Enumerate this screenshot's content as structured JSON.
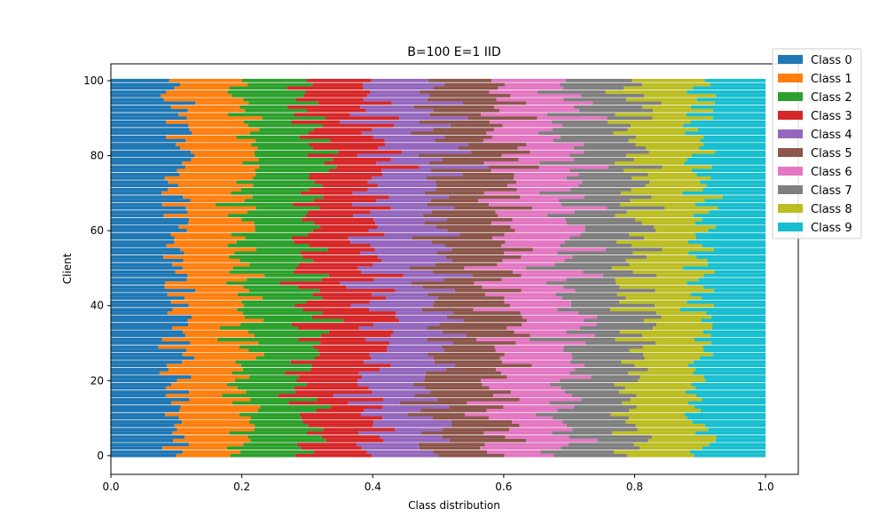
{
  "chart_data": {
    "type": "bar",
    "orientation": "horizontal-stacked",
    "title": "B=100 E=1 IID",
    "xlabel": "Class distribution",
    "ylabel": "Client",
    "xlim": [
      0.0,
      1.05
    ],
    "ylim": [
      -5,
      104.5
    ],
    "xticks": [
      "0.0",
      "0.2",
      "0.4",
      "0.6",
      "0.8",
      "1.0"
    ],
    "yticks": [
      "0",
      "20",
      "40",
      "60",
      "80",
      "100"
    ],
    "grid": false,
    "legend_position": "top-right",
    "num_clients": 101,
    "client_range": [
      0,
      100
    ],
    "mean_share_per_class": 0.1,
    "series": [
      {
        "name": "Class 0",
        "color": "#1f77b4",
        "mean_share": 0.1
      },
      {
        "name": "Class 1",
        "color": "#ff7f0e",
        "mean_share": 0.1
      },
      {
        "name": "Class 2",
        "color": "#2ca02c",
        "mean_share": 0.1
      },
      {
        "name": "Class 3",
        "color": "#d62728",
        "mean_share": 0.1
      },
      {
        "name": "Class 4",
        "color": "#9467bd",
        "mean_share": 0.1
      },
      {
        "name": "Class 5",
        "color": "#8c564b",
        "mean_share": 0.1
      },
      {
        "name": "Class 6",
        "color": "#e377c2",
        "mean_share": 0.1
      },
      {
        "name": "Class 7",
        "color": "#7f7f7f",
        "mean_share": 0.1
      },
      {
        "name": "Class 8",
        "color": "#bcbd22",
        "mean_share": 0.1
      },
      {
        "name": "Class 9",
        "color": "#17becf",
        "mean_share": 0.1
      }
    ]
  }
}
